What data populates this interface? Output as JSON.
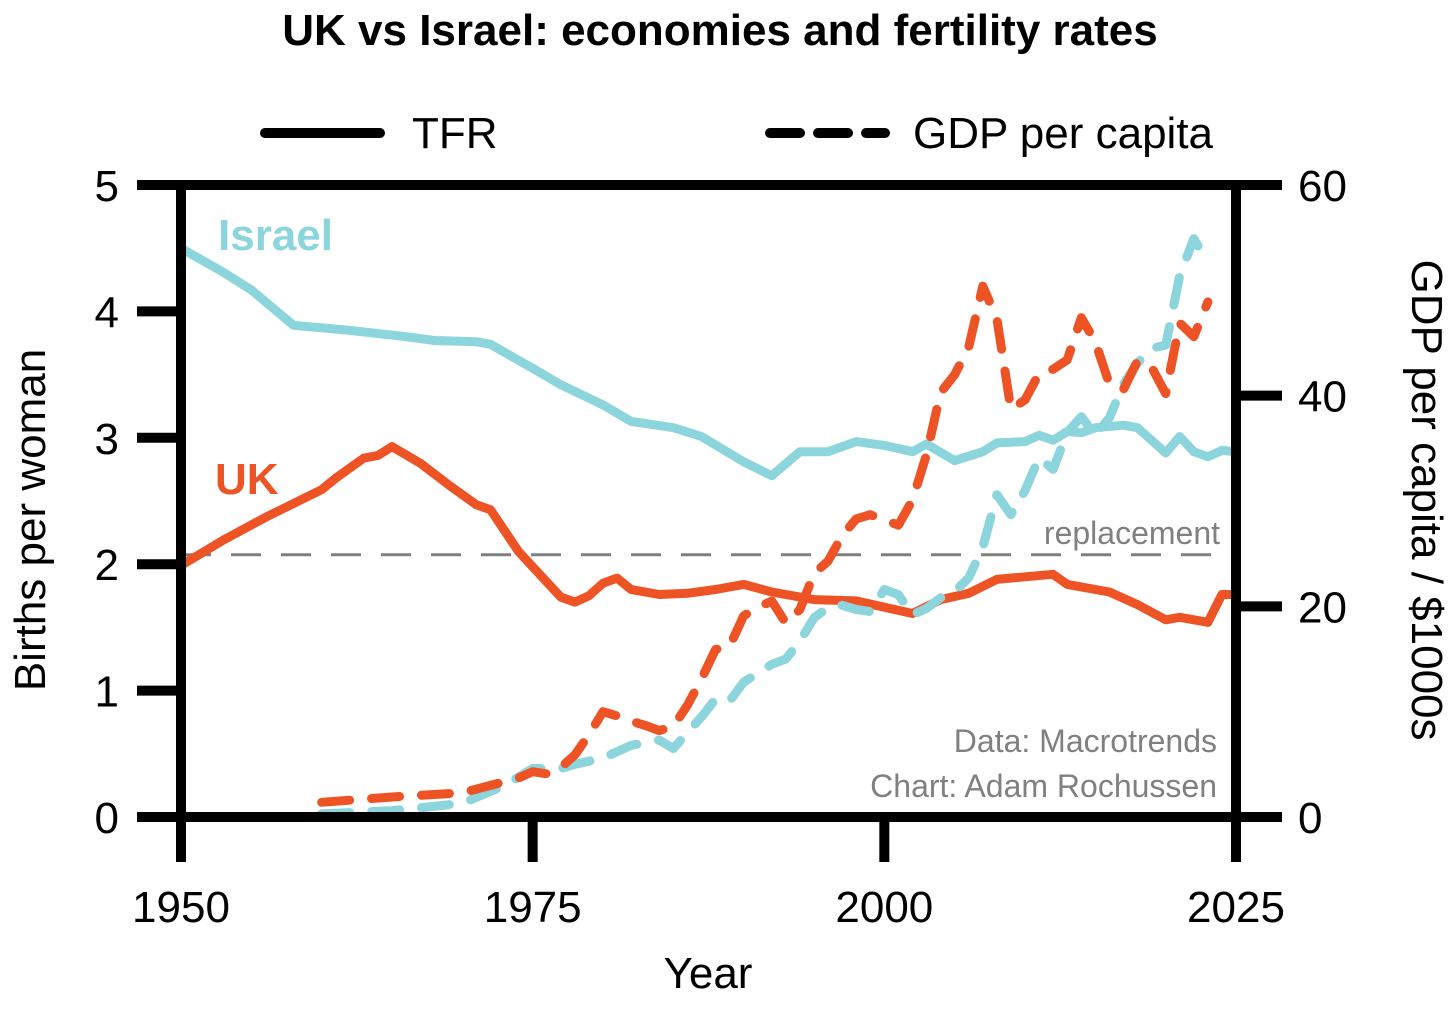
{
  "chart_data": {
    "type": "line",
    "title": "UK vs Israel: economies and fertility rates",
    "xlabel": "Year",
    "ylabel": "Births per woman",
    "y2label": "GDP per capita / $1000s",
    "xlim": [
      1950,
      2025
    ],
    "ylim": [
      0,
      5
    ],
    "y2lim": [
      0,
      60
    ],
    "xticks": [
      "1950",
      "1975",
      "2000",
      "2025"
    ],
    "yticks": [
      "0",
      "1",
      "2",
      "3",
      "4",
      "5"
    ],
    "y2ticks": [
      "0",
      "20",
      "40",
      "60"
    ],
    "legend": {
      "placement": "top",
      "items": [
        {
          "label": "TFR",
          "style": "solid"
        },
        {
          "label": "GDP per capita",
          "style": "dashed"
        }
      ]
    },
    "replacement": {
      "label": "replacement",
      "value": 2.075,
      "color": "#808080"
    },
    "annotations": {
      "credit_data": "Data: Macrotrends",
      "credit_chart": "Chart: Adam Rochussen"
    },
    "series": [
      {
        "name": "Israel",
        "metric": "TFR",
        "axis": "left",
        "color": "#8DD5DD",
        "x": [
          1950,
          1953,
          1955,
          1958,
          1962,
          1966,
          1968,
          1971,
          1972,
          1975,
          1977,
          1980,
          1982,
          1985,
          1987,
          1990,
          1992,
          1994,
          1996,
          1998,
          2000,
          2002,
          2003,
          2005,
          2007,
          2008,
          2010,
          2011,
          2012,
          2013,
          2014,
          2015,
          2017,
          2018,
          2019,
          2020,
          2021,
          2022,
          2023,
          2024,
          2025
        ],
        "y": [
          4.5,
          4.31,
          4.17,
          3.89,
          3.85,
          3.8,
          3.77,
          3.76,
          3.74,
          3.55,
          3.42,
          3.26,
          3.13,
          3.08,
          3.01,
          2.81,
          2.7,
          2.89,
          2.89,
          2.97,
          2.94,
          2.89,
          2.95,
          2.82,
          2.89,
          2.96,
          2.97,
          3.02,
          2.98,
          3.05,
          3.04,
          3.08,
          3.1,
          3.08,
          2.98,
          2.88,
          3.01,
          2.89,
          2.85,
          2.9,
          2.89
        ]
      },
      {
        "name": "UK",
        "metric": "TFR",
        "axis": "left",
        "color": "#EE5326",
        "x": [
          1950,
          1953,
          1956,
          1960,
          1961,
          1963,
          1964,
          1965,
          1967,
          1969,
          1971,
          1972,
          1974,
          1976,
          1977,
          1978,
          1979,
          1980,
          1981,
          1982,
          1984,
          1986,
          1988,
          1990,
          1992,
          1995,
          1998,
          2000,
          2002,
          2004,
          2006,
          2008,
          2010,
          2012,
          2013,
          2016,
          2018,
          2020,
          2021,
          2023,
          2024,
          2025
        ],
        "y": [
          1.99,
          2.19,
          2.37,
          2.59,
          2.68,
          2.84,
          2.86,
          2.93,
          2.8,
          2.63,
          2.47,
          2.43,
          2.1,
          1.86,
          1.74,
          1.7,
          1.75,
          1.85,
          1.89,
          1.8,
          1.76,
          1.77,
          1.8,
          1.84,
          1.78,
          1.72,
          1.71,
          1.66,
          1.61,
          1.72,
          1.77,
          1.88,
          1.9,
          1.92,
          1.84,
          1.78,
          1.68,
          1.56,
          1.58,
          1.54,
          1.76,
          1.76
        ]
      },
      {
        "name": "Israel",
        "metric": "GDP per capita",
        "axis": "right",
        "color": "#8DD5DD",
        "x": [
          1960,
          1965,
          1970,
          1973,
          1975,
          1977,
          1978,
          1980,
          1982,
          1984,
          1985,
          1987,
          1988,
          1989,
          1990,
          1992,
          1993,
          1994,
          1995,
          1996,
          1997,
          1998,
          1999,
          2000,
          2001,
          2002,
          2003,
          2004,
          2005,
          2006,
          2007,
          2008,
          2009,
          2010,
          2011,
          2012,
          2013,
          2014,
          2015,
          2016,
          2017,
          2018,
          2019,
          2020,
          2021,
          2022,
          2023
        ],
        "y": [
          0.3,
          0.6,
          1.3,
          3.0,
          4.6,
          4.6,
          5.0,
          5.6,
          6.8,
          7.3,
          6.5,
          9.5,
          11.2,
          11.0,
          12.8,
          14.5,
          15.0,
          16.7,
          18.9,
          19.9,
          20.1,
          19.7,
          19.5,
          21.6,
          21.1,
          19.2,
          19.8,
          20.8,
          21.4,
          22.7,
          25.6,
          30.6,
          28.7,
          31.0,
          34.1,
          33.0,
          36.5,
          38.0,
          36.3,
          37.9,
          41.1,
          43.1,
          44.5,
          44.8,
          51.4,
          54.9,
          52.6
        ]
      },
      {
        "name": "UK",
        "metric": "GDP per capita",
        "axis": "right",
        "color": "#EE5326",
        "x": [
          1960,
          1965,
          1970,
          1972,
          1974,
          1975,
          1976,
          1977,
          1978,
          1979,
          1980,
          1981,
          1982,
          1983,
          1984,
          1985,
          1986,
          1987,
          1988,
          1989,
          1990,
          1991,
          1992,
          1993,
          1994,
          1995,
          1996,
          1997,
          1998,
          1999,
          2000,
          2001,
          2002,
          2003,
          2004,
          2005,
          2006,
          2007,
          2008,
          2009,
          2010,
          2011,
          2012,
          2013,
          2014,
          2015,
          2016,
          2017,
          2018,
          2019,
          2020,
          2021,
          2022,
          2023
        ],
        "y": [
          1.4,
          1.9,
          2.3,
          3.0,
          3.7,
          4.3,
          4.1,
          4.7,
          5.9,
          7.8,
          10.0,
          9.6,
          9.1,
          8.7,
          8.2,
          8.6,
          10.6,
          13.1,
          15.9,
          16.2,
          19.1,
          19.9,
          20.5,
          18.4,
          19.7,
          23.1,
          24.3,
          26.7,
          28.3,
          28.7,
          28.2,
          27.7,
          30.1,
          34.4,
          40.3,
          42.0,
          44.6,
          50.4,
          47.3,
          38.7,
          39.6,
          42.1,
          42.5,
          43.4,
          47.4,
          45.1,
          41.1,
          40.6,
          43.3,
          42.7,
          40.2,
          46.9,
          45.6,
          48.9
        ]
      }
    ],
    "series_labels": [
      {
        "text": "Israel",
        "color": "#8DD5DD"
      },
      {
        "text": "UK",
        "color": "#EE5326"
      }
    ]
  }
}
